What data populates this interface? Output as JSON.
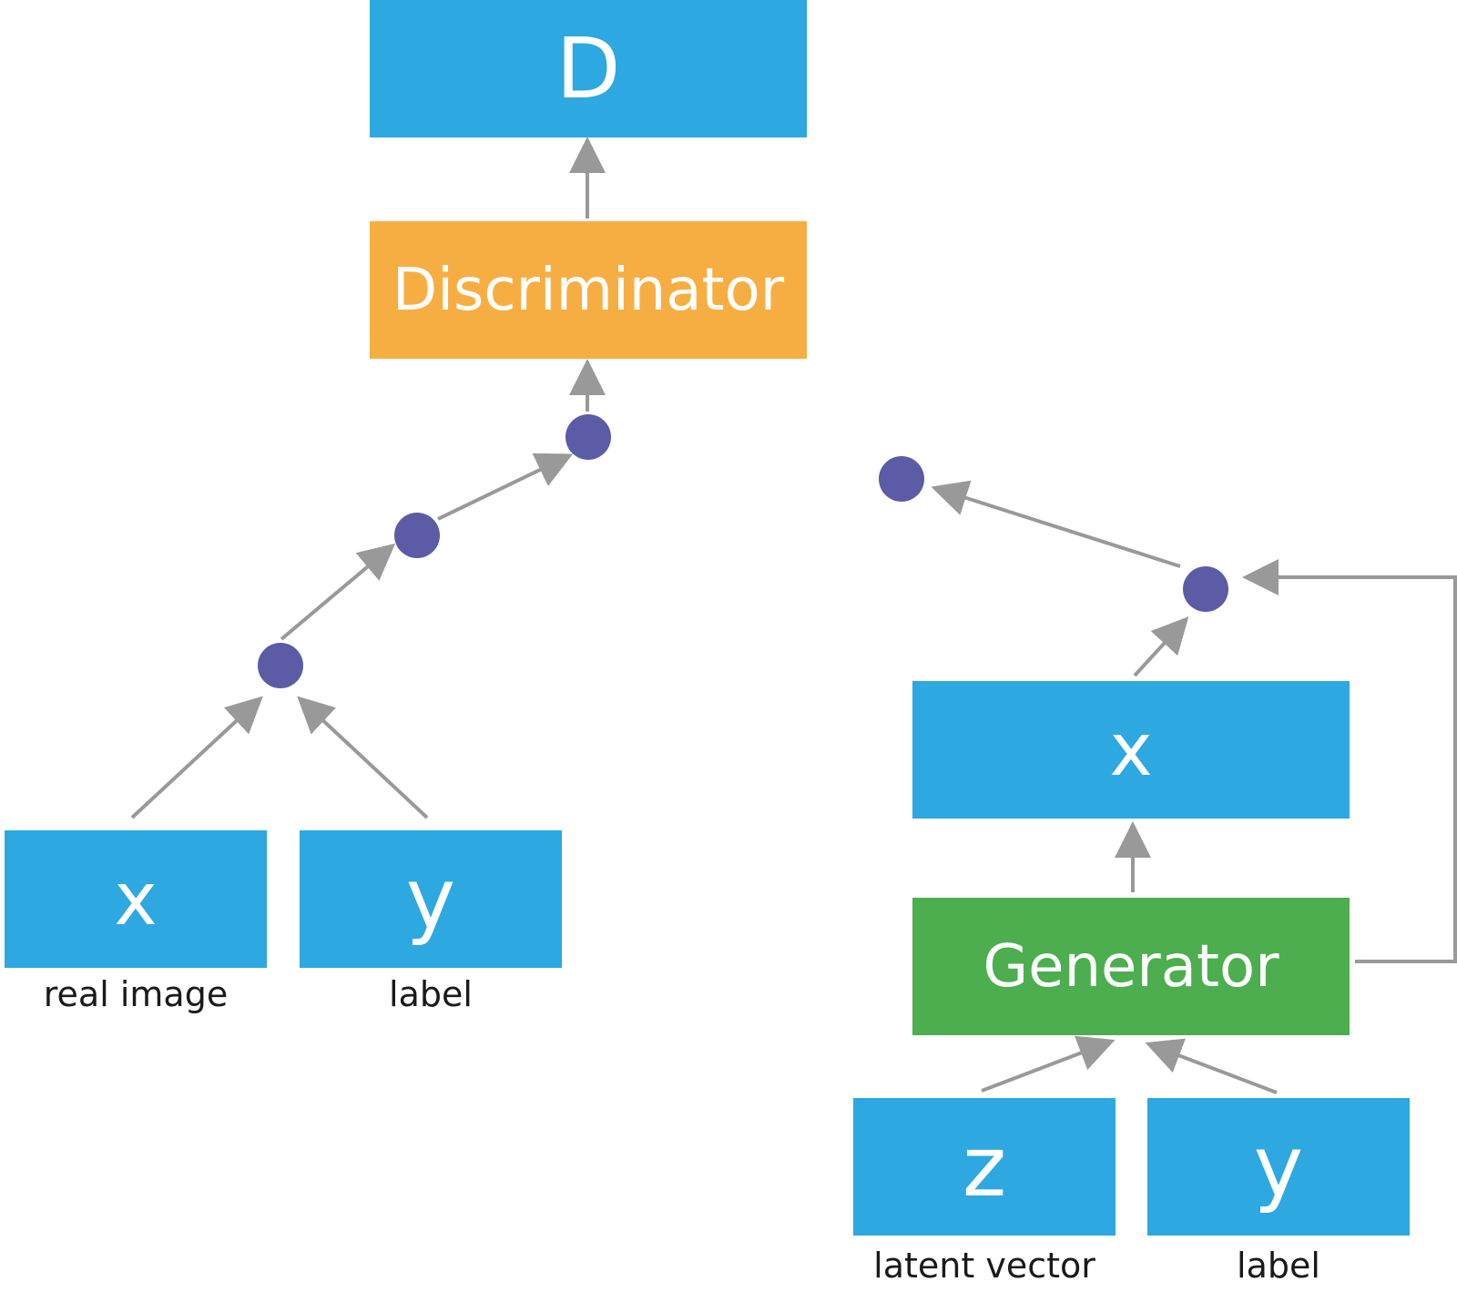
{
  "colors": {
    "box_blue": "#2da8e0",
    "discriminator_orange": "#f6ae43",
    "generator_green": "#4cae4f",
    "node_purple": "#5b5ba6",
    "arrow_gray": "#999999"
  },
  "discriminator_side": {
    "output": "D",
    "model": "Discriminator",
    "inputs": [
      {
        "symbol": "x",
        "caption": "real image"
      },
      {
        "symbol": "y",
        "caption": "label"
      }
    ]
  },
  "generator_side": {
    "output": "x",
    "model": "Generator",
    "inputs": [
      {
        "symbol": "z",
        "caption": "latent vector"
      },
      {
        "symbol": "y",
        "caption": "label"
      }
    ]
  }
}
